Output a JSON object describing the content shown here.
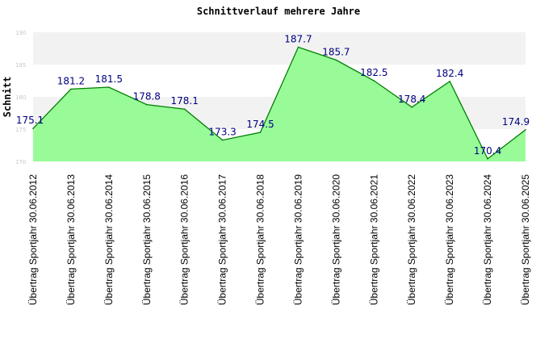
{
  "chart_data": {
    "type": "area",
    "title": "Schnittverlauf mehrere Jahre",
    "xlabel": "",
    "ylabel": "Schnitt",
    "ylim": [
      170,
      190
    ],
    "yticks": [
      170,
      175,
      180,
      185,
      190
    ],
    "categories": [
      "Übertrag Sportjahr 30.06.2012",
      "Übertrag Sportjahr 30.06.2013",
      "Übertrag Sportjahr 30.06.2014",
      "Übertrag Sportjahr 30.06.2015",
      "Übertrag Sportjahr 30.06.2016",
      "Übertrag Sportjahr 30.06.2017",
      "Übertrag Sportjahr 30.06.2018",
      "Übertrag Sportjahr 30.06.2019",
      "Übertrag Sportjahr 30.06.2020",
      "Übertrag Sportjahr 30.06.2021",
      "Übertrag Sportjahr 30.06.2022",
      "Übertrag Sportjahr 30.06.2023",
      "Übertrag Sportjahr 30.06.2024",
      "Übertrag Sportjahr 30.06.2025"
    ],
    "series": [
      {
        "name": "Schnitt",
        "values": [
          175.1,
          181.2,
          181.5,
          178.8,
          178.1,
          173.3,
          174.5,
          187.7,
          185.7,
          182.5,
          178.4,
          182.4,
          170.4,
          174.9
        ],
        "labels": [
          "175.1",
          "181.2",
          "181.5",
          "178.8",
          "178.1",
          "173.3",
          "174.5",
          "187.7",
          "185.7",
          "182.5",
          "178.4",
          "182.4",
          "170.4",
          "174.9"
        ]
      }
    ],
    "colors": {
      "fill": "#98fb98",
      "line": "#008000",
      "band": "#f2f2f2",
      "label": "#000080"
    }
  }
}
